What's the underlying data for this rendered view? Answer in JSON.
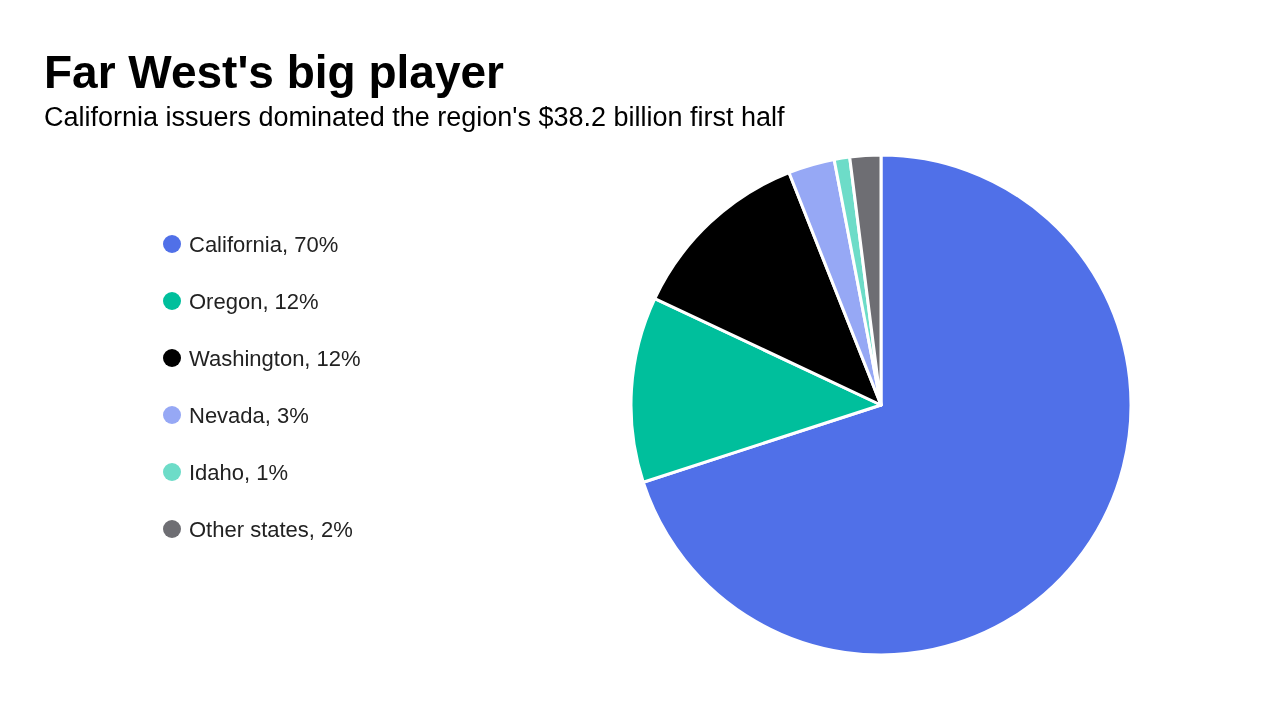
{
  "chart_data": {
    "type": "pie",
    "title": "Far West's big player",
    "subtitle": "California issuers dominated the region's $38.2 billion first half",
    "categories": [
      "California",
      "Oregon",
      "Washington",
      "Nevada",
      "Idaho",
      "Other states"
    ],
    "values": [
      70,
      12,
      12,
      3,
      1,
      2
    ],
    "value_labels": [
      "70%",
      "12%",
      "12%",
      "3%",
      "1%",
      "2%"
    ],
    "colors": [
      "#5070e8",
      "#00bf9c",
      "#000000",
      "#96a8f5",
      "#6ddcc8",
      "#6e6e73"
    ],
    "legend": "left"
  }
}
